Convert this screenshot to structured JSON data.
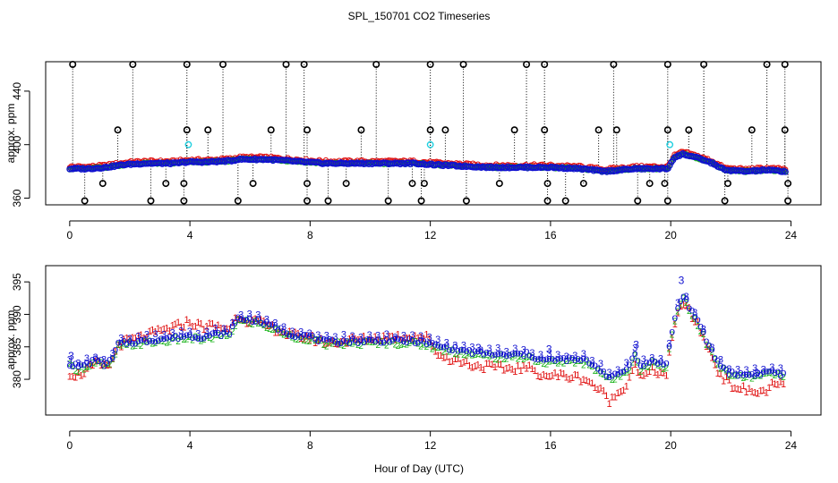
{
  "figure": {
    "title": "SPL_150701  CO2 Timeseries",
    "xlabel": "Hour of Day (UTC)"
  },
  "colors": {
    "red": "#e01010",
    "blue": "#1010d0",
    "green": "#10b010",
    "cyan": "#20d0e0",
    "black": "#000000"
  },
  "chart_data": [
    {
      "type": "scatter",
      "name": "top-panel",
      "ylabel": "approx. ppm",
      "xlim": [
        -0.8,
        25
      ],
      "ylim": [
        355,
        462
      ],
      "xticks": [
        0,
        4,
        8,
        12,
        16,
        20,
        24
      ],
      "yticks": [
        360,
        400,
        440
      ],
      "profile": [
        [
          0,
          382
        ],
        [
          0.6,
          382
        ],
        [
          1.2,
          383
        ],
        [
          1.8,
          385
        ],
        [
          2.5,
          386
        ],
        [
          3.5,
          386
        ],
        [
          3.9,
          387
        ],
        [
          4.6,
          387
        ],
        [
          5.4,
          388
        ],
        [
          5.6,
          389
        ],
        [
          6.5,
          389
        ],
        [
          7.2,
          388
        ],
        [
          7.8,
          387
        ],
        [
          8.5,
          386
        ],
        [
          9.5,
          386
        ],
        [
          10.5,
          386
        ],
        [
          11.5,
          386
        ],
        [
          12.1,
          385
        ],
        [
          13.0,
          384
        ],
        [
          14.0,
          383
        ],
        [
          15.0,
          383
        ],
        [
          16.0,
          383
        ],
        [
          17.0,
          382
        ],
        [
          17.8,
          380
        ],
        [
          18.3,
          381
        ],
        [
          18.8,
          382
        ],
        [
          19.4,
          382
        ],
        [
          19.9,
          382
        ],
        [
          20.1,
          390
        ],
        [
          20.4,
          393
        ],
        [
          20.9,
          390
        ],
        [
          21.4,
          386
        ],
        [
          21.8,
          381
        ],
        [
          22.5,
          380
        ],
        [
          23.2,
          381
        ],
        [
          23.8,
          380
        ]
      ],
      "spikes_high": [
        0.1,
        2.1,
        3.9,
        5.1,
        7.2,
        7.8,
        10.2,
        12.0,
        13.1,
        15.2,
        15.8,
        18.1,
        19.9,
        21.1,
        23.2,
        23.8
      ],
      "spikes_mid": [
        1.6,
        3.9,
        4.6,
        6.7,
        7.9,
        9.7,
        12.0,
        12.5,
        14.8,
        15.8,
        17.6,
        18.2,
        19.9,
        20.6,
        22.7,
        23.8
      ],
      "spikes_low": [
        0.5,
        2.7,
        3.8,
        5.6,
        7.9,
        8.6,
        10.6,
        11.7,
        13.2,
        15.9,
        16.5,
        18.9,
        19.9,
        21.8,
        23.9
      ],
      "lows_hi": [
        1.1,
        3.2,
        3.8,
        6.1,
        7.9,
        9.2,
        11.4,
        11.8,
        14.3,
        15.9,
        17.1,
        19.3,
        19.8,
        21.9,
        23.9
      ],
      "cyan_points": [
        [
          3.95,
          400
        ],
        [
          12.0,
          400
        ],
        [
          19.97,
          400
        ]
      ]
    },
    {
      "type": "scatter",
      "name": "bottom-panel",
      "ylabel": "approx. ppm",
      "xlim": [
        -0.8,
        25
      ],
      "ylim": [
        374.5,
        397.5
      ],
      "xticks": [
        0,
        4,
        8,
        12,
        16,
        20,
        24
      ],
      "yticks": [
        380,
        385,
        390,
        395
      ],
      "series": [
        {
          "name": "1",
          "marker": "1",
          "color": "red"
        },
        {
          "name": "2",
          "marker": "2",
          "color": "green"
        },
        {
          "name": "3",
          "marker": "3",
          "color": "blue"
        },
        {
          "name": "o",
          "marker": "o",
          "color": "blue"
        }
      ],
      "profile": [
        [
          0.0,
          382.5
        ],
        [
          0.3,
          382.0
        ],
        [
          0.7,
          382.8
        ],
        [
          1.0,
          383.2
        ],
        [
          1.1,
          382.3
        ],
        [
          1.4,
          383.0
        ],
        [
          1.6,
          385.5
        ],
        [
          2.0,
          385.8
        ],
        [
          2.5,
          386.0
        ],
        [
          3.0,
          386.3
        ],
        [
          3.6,
          386.6
        ],
        [
          3.9,
          386.9
        ],
        [
          4.3,
          386.6
        ],
        [
          4.8,
          387.0
        ],
        [
          5.3,
          387.2
        ],
        [
          5.6,
          389.5
        ],
        [
          6.2,
          389.2
        ],
        [
          6.8,
          388.2
        ],
        [
          7.4,
          387.0
        ],
        [
          7.9,
          386.8
        ],
        [
          8.5,
          385.9
        ],
        [
          9.5,
          386.0
        ],
        [
          10.5,
          386.1
        ],
        [
          11.5,
          386.0
        ],
        [
          11.9,
          385.7
        ],
        [
          12.2,
          385.3
        ],
        [
          12.8,
          384.8
        ],
        [
          13.5,
          384.2
        ],
        [
          14.5,
          383.8
        ],
        [
          15.2,
          384.0
        ],
        [
          15.8,
          383.0
        ],
        [
          16.5,
          383.2
        ],
        [
          17.2,
          383.0
        ],
        [
          17.7,
          381.5
        ],
        [
          18.0,
          380.3
        ],
        [
          18.3,
          381.0
        ],
        [
          18.6,
          382.0
        ],
        [
          18.8,
          384.5
        ],
        [
          19.0,
          382.0
        ],
        [
          19.4,
          383.0
        ],
        [
          19.85,
          382.3
        ],
        [
          20.1,
          389.0
        ],
        [
          20.4,
          393.2
        ],
        [
          20.6,
          391.5
        ],
        [
          21.0,
          388.0
        ],
        [
          21.2,
          386.0
        ],
        [
          21.6,
          382.5
        ],
        [
          22.0,
          381.0
        ],
        [
          22.5,
          380.8
        ],
        [
          23.0,
          381.0
        ],
        [
          23.4,
          381.4
        ],
        [
          23.8,
          380.6
        ]
      ],
      "red_deficit": [
        [
          0.0,
          1.5
        ],
        [
          1.5,
          0.2
        ],
        [
          4.0,
          -2.0
        ],
        [
          5.5,
          -0.5
        ],
        [
          6.0,
          0.3
        ],
        [
          8.5,
          0.2
        ],
        [
          10.5,
          -0.4
        ],
        [
          11.9,
          -0.8
        ],
        [
          12.3,
          1.5
        ],
        [
          13.5,
          2.0
        ],
        [
          15.5,
          2.2
        ],
        [
          17.0,
          2.8
        ],
        [
          18.0,
          3.6
        ],
        [
          18.7,
          1.8
        ],
        [
          19.8,
          1.5
        ],
        [
          20.4,
          1.0
        ],
        [
          21.0,
          0.5
        ],
        [
          21.7,
          1.5
        ],
        [
          23.0,
          3.0
        ],
        [
          23.8,
          1.5
        ]
      ]
    }
  ]
}
